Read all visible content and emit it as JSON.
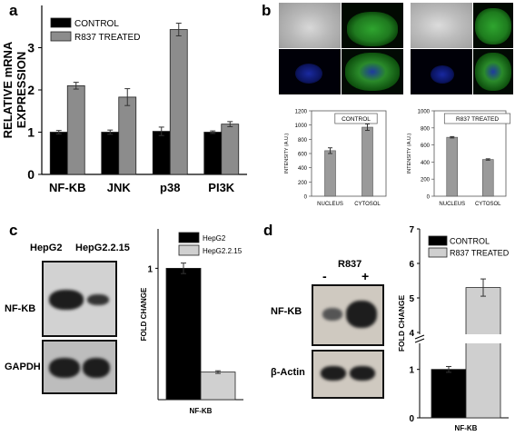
{
  "panels": {
    "a": {
      "label": "a"
    },
    "b": {
      "label": "b"
    },
    "c": {
      "label": "c"
    },
    "d": {
      "label": "d"
    }
  },
  "colors": {
    "control": "#000000",
    "treated": "#8c8c8c",
    "light_gray": "#cfcfcf",
    "hepg2215": "#d0d0d0"
  },
  "chart_data": [
    {
      "id": "a",
      "type": "bar",
      "ylabel": "RELATIVE mRNA EXPRESSION",
      "ylabel_line1": "RELATIVE mRNA",
      "ylabel_line2": "EXPRESSION",
      "categories": [
        "NF-KB",
        "JNK",
        "p38",
        "PI3K"
      ],
      "series": [
        {
          "name": "CONTROL",
          "values": [
            1.0,
            1.0,
            1.02,
            1.0
          ],
          "errors": [
            0.04,
            0.05,
            0.1,
            0.03
          ]
        },
        {
          "name": "R837 TREATED",
          "values": [
            2.1,
            1.83,
            3.43,
            1.19
          ],
          "errors": [
            0.08,
            0.2,
            0.15,
            0.06
          ]
        }
      ],
      "ylim": [
        0,
        4
      ],
      "yticks": [
        "0",
        "1",
        "2",
        "3"
      ],
      "legend": "top-left"
    },
    {
      "id": "b-control",
      "type": "bar",
      "title": "CONTROL",
      "ylabel": "INTENSITY (A.U.)",
      "categories": [
        "NUCLEUS",
        "CYTOSOL"
      ],
      "values": [
        640,
        970
      ],
      "errors": [
        40,
        45
      ],
      "ylim": [
        0,
        1200
      ],
      "yticks": [
        "0",
        "200",
        "400",
        "600",
        "800",
        "1000",
        "1200"
      ]
    },
    {
      "id": "b-treated",
      "type": "bar",
      "title": "R837 TREATED",
      "ylabel": "INTENSITY (A.U.)",
      "categories": [
        "NUCLEUS",
        "CYTOSOL"
      ],
      "values": [
        690,
        430
      ],
      "errors": [
        8,
        8
      ],
      "ylim": [
        0,
        1000
      ],
      "yticks": [
        "0",
        "200",
        "400",
        "600",
        "800",
        "1000"
      ]
    },
    {
      "id": "c",
      "type": "bar",
      "ylabel": "FOLD CHANGE",
      "categories": [
        "NF-KB"
      ],
      "series": [
        {
          "name": "HepG2",
          "values": [
            1.0
          ],
          "errors": [
            0.04
          ]
        },
        {
          "name": "HepG2.2.15",
          "values": [
            0.21
          ],
          "errors": [
            0.01
          ]
        }
      ],
      "ylim": [
        0,
        1.3
      ],
      "yticks": [
        "1"
      ],
      "legend": "top-right"
    },
    {
      "id": "d",
      "type": "bar",
      "ylabel": "FOLD CHANGE",
      "categories": [
        "NF-KB"
      ],
      "series": [
        {
          "name": "CONTROL",
          "values": [
            1.0
          ],
          "errors": [
            0.06
          ]
        },
        {
          "name": "R837 TREATED",
          "values": [
            5.3
          ],
          "errors": [
            0.25
          ]
        }
      ],
      "yticks": [
        "0",
        "1",
        "4",
        "5",
        "6",
        "7"
      ],
      "axis_break": [
        1.5,
        4.0
      ],
      "legend": "top-left"
    }
  ],
  "blot_c": {
    "lanes": [
      "HepG2",
      "HepG2.2.15"
    ],
    "rows": [
      "NF-KB",
      "GAPDH"
    ]
  },
  "blot_d": {
    "treatment": "R837",
    "lanes": [
      "-",
      "+"
    ],
    "rows": [
      "NF-KB",
      "β-Actin"
    ]
  }
}
